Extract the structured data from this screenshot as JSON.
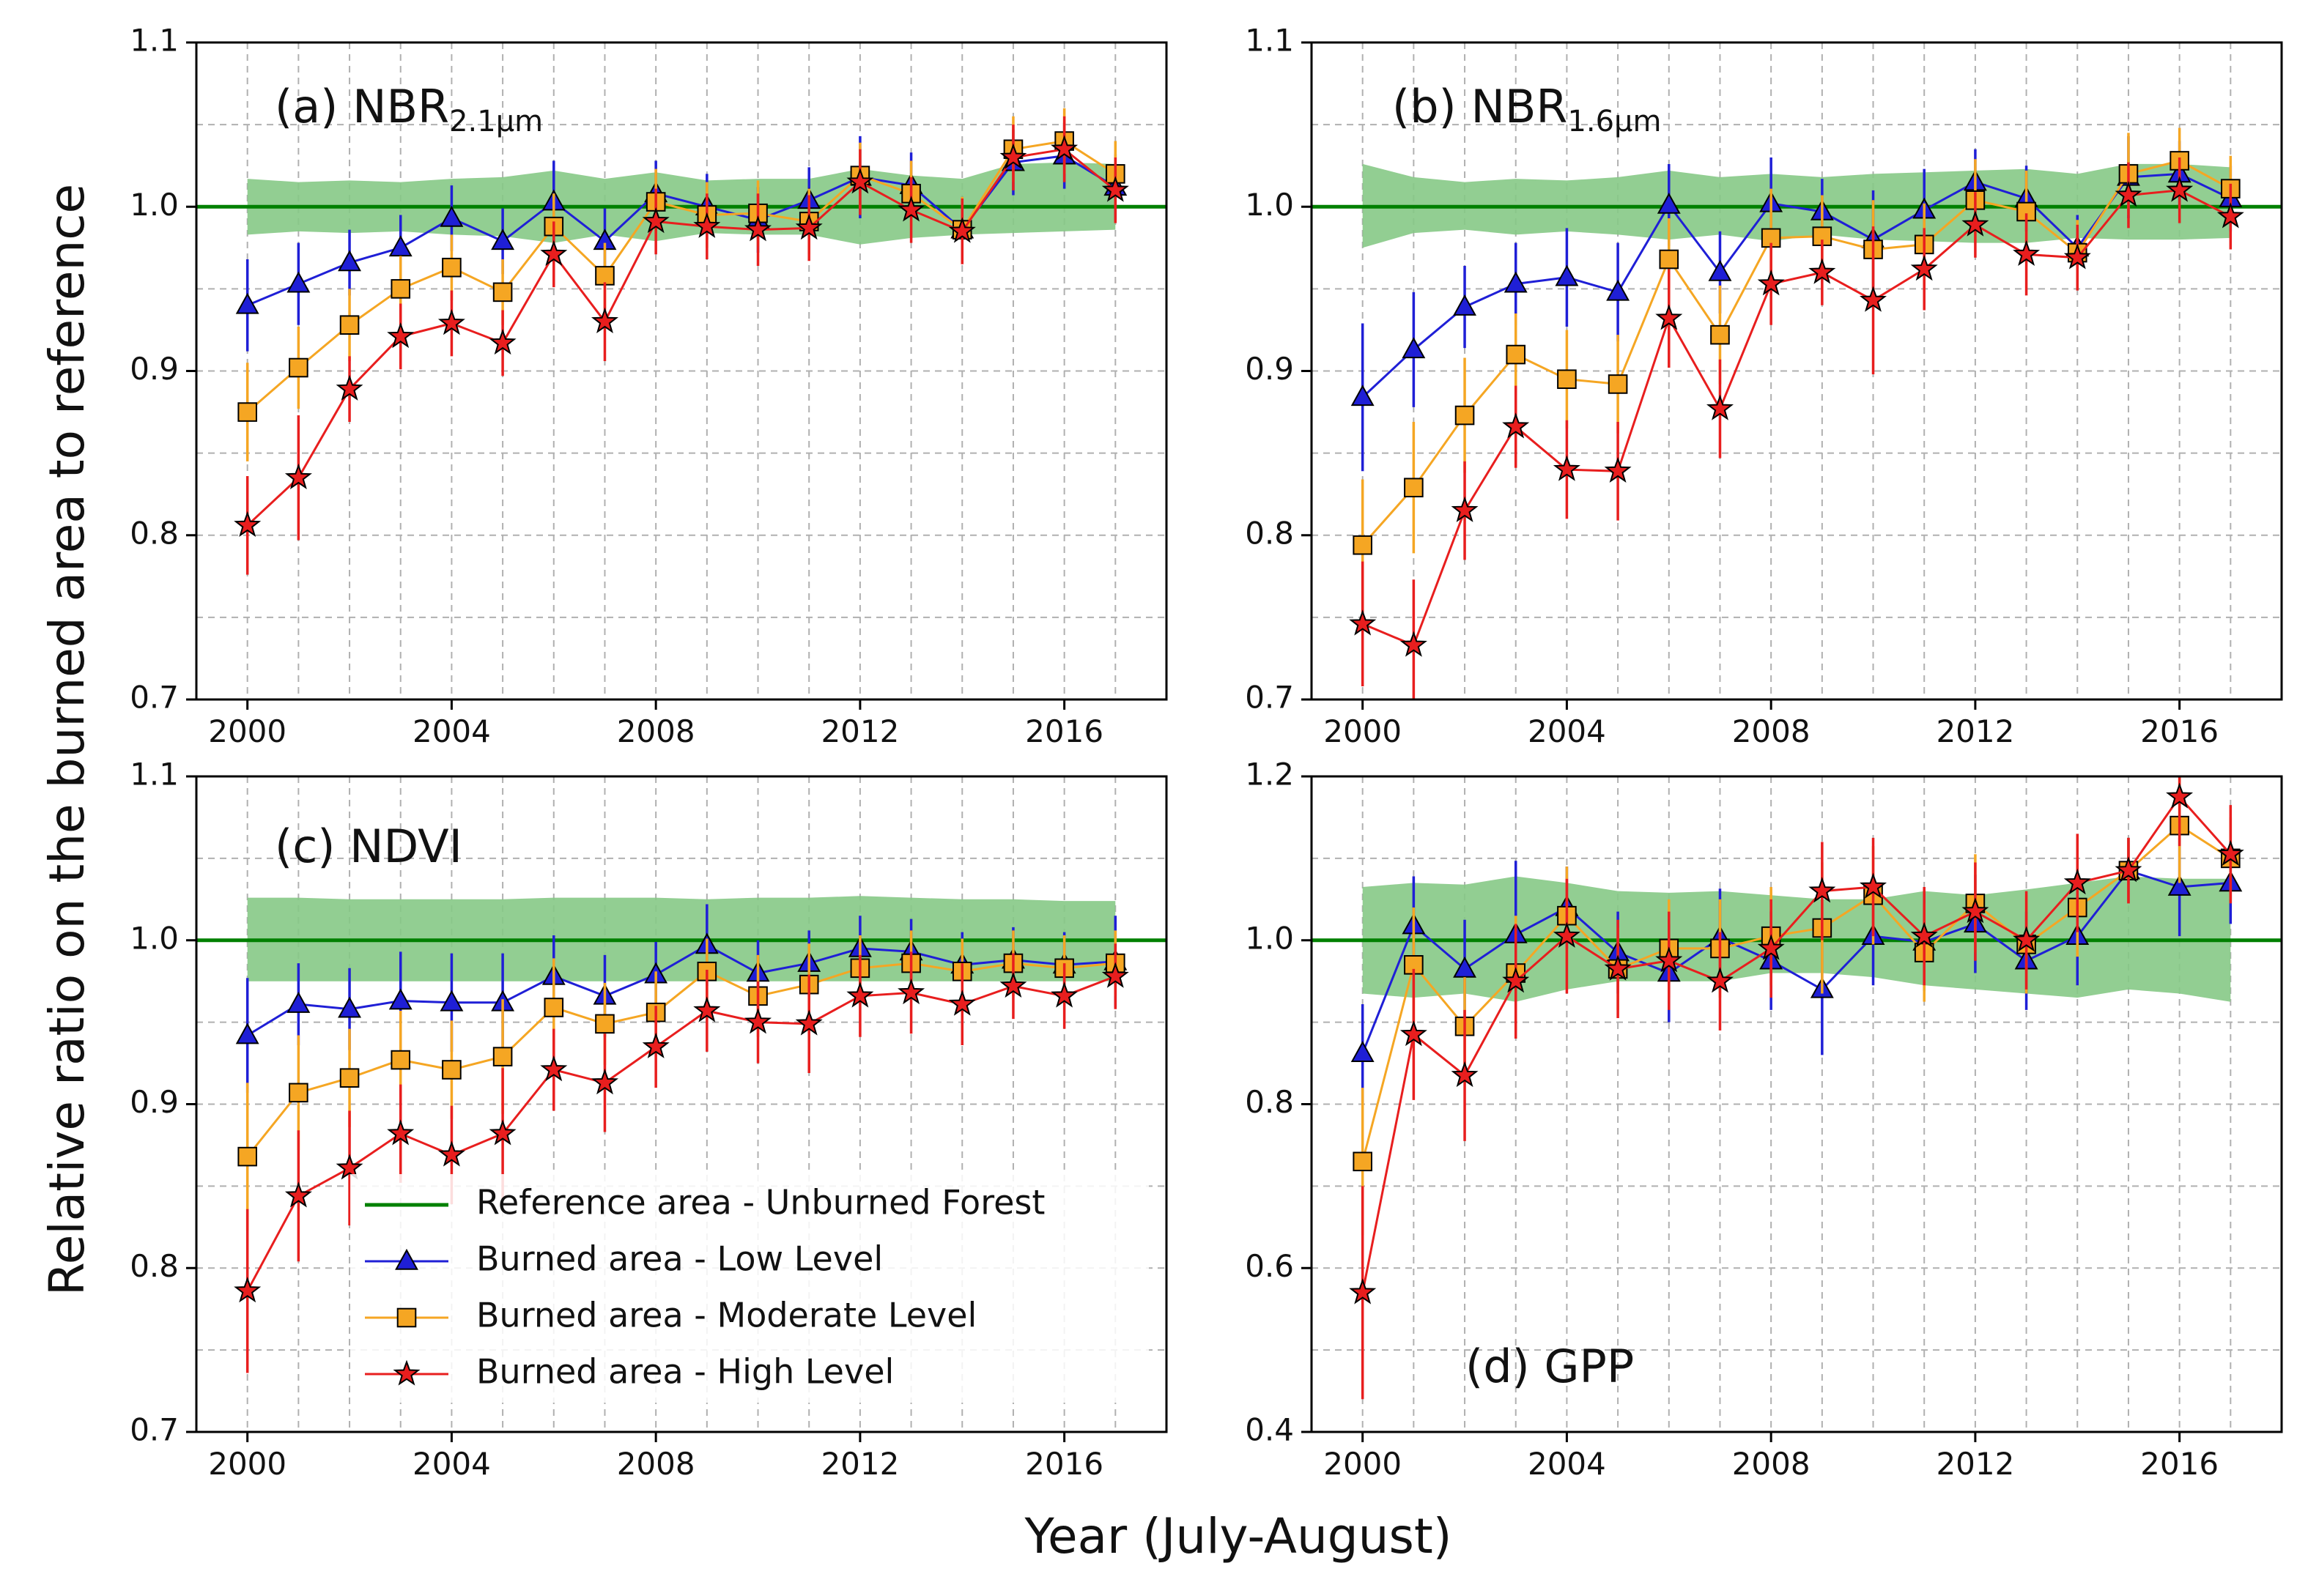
{
  "figure": {
    "ylabel": "Relative ratio on the burned area to reference",
    "xlabel": "Year (July-August)"
  },
  "legend": {
    "entries": [
      {
        "label": "Reference area - Unburned Forest",
        "color": "#008000",
        "marker": "line"
      },
      {
        "label": "Burned area - Low Level",
        "color": "#1f1fd6",
        "marker": "triangle"
      },
      {
        "label": "Burned area - Moderate Level",
        "color": "#f5a623",
        "marker": "square"
      },
      {
        "label": "Burned area - High Level",
        "color": "#e81e1e",
        "marker": "star"
      }
    ]
  },
  "colors": {
    "reference": "#008000",
    "band": "#86c986",
    "low": "#1f1fd6",
    "moderate": "#f5a623",
    "high": "#e81e1e",
    "grid": "#b0b0b0"
  },
  "chart_data": [
    {
      "type": "line",
      "title": "(a) NBR",
      "title_subscript": "2.1μm",
      "xlabel": "Year (July-August)",
      "ylabel": "Relative ratio on the burned area to reference",
      "xlim": [
        1999,
        2018
      ],
      "ylim": [
        0.7,
        1.1
      ],
      "xticks": [
        "2000",
        "2004",
        "2008",
        "2012",
        "2016"
      ],
      "yticks": [
        "0.7",
        "0.8",
        "0.9",
        "1.0",
        "1.1"
      ],
      "x": [
        2000,
        2001,
        2002,
        2003,
        2004,
        2005,
        2006,
        2007,
        2008,
        2009,
        2010,
        2011,
        2012,
        2013,
        2014,
        2015,
        2016,
        2017
      ],
      "reference": 1.0,
      "band_upper": [
        1.017,
        1.015,
        1.016,
        1.015,
        1.017,
        1.018,
        1.022,
        1.017,
        1.021,
        1.016,
        1.017,
        1.017,
        1.023,
        1.019,
        1.017,
        1.026,
        1.027,
        1.026
      ],
      "band_lower": [
        0.983,
        0.985,
        0.984,
        0.985,
        0.983,
        0.982,
        0.978,
        0.983,
        0.979,
        0.984,
        0.983,
        0.983,
        0.977,
        0.981,
        0.983,
        0.984,
        0.985,
        0.986
      ],
      "series": [
        {
          "name": "Burned area - Low Level",
          "marker": "triangle",
          "values": [
            0.94,
            0.953,
            0.966,
            0.975,
            0.993,
            0.979,
            1.003,
            0.979,
            1.008,
            1.0,
            0.992,
            1.004,
            1.018,
            1.013,
            0.986,
            1.027,
            1.031,
            1.012
          ],
          "errors": [
            0.028,
            0.025,
            0.02,
            0.02,
            0.02,
            0.02,
            0.025,
            0.02,
            0.02,
            0.02,
            0.02,
            0.02,
            0.025,
            0.02,
            0.02,
            0.02,
            0.02,
            0.02
          ]
        },
        {
          "name": "Burned area - Moderate Level",
          "marker": "square",
          "values": [
            0.875,
            0.902,
            0.928,
            0.95,
            0.963,
            0.948,
            0.988,
            0.958,
            1.003,
            0.995,
            0.996,
            0.991,
            1.019,
            1.008,
            0.986,
            1.035,
            1.04,
            1.02
          ],
          "errors": [
            0.03,
            0.025,
            0.022,
            0.02,
            0.02,
            0.02,
            0.02,
            0.02,
            0.02,
            0.02,
            0.02,
            0.02,
            0.02,
            0.02,
            0.02,
            0.02,
            0.02,
            0.02
          ]
        },
        {
          "name": "Burned area - High Level",
          "marker": "star",
          "values": [
            0.806,
            0.835,
            0.889,
            0.921,
            0.929,
            0.917,
            0.971,
            0.93,
            0.991,
            0.988,
            0.986,
            0.987,
            1.015,
            0.998,
            0.985,
            1.03,
            1.035,
            1.01
          ],
          "errors": [
            0.03,
            0.038,
            0.02,
            0.02,
            0.02,
            0.02,
            0.02,
            0.024,
            0.02,
            0.02,
            0.022,
            0.02,
            0.02,
            0.02,
            0.02,
            0.02,
            0.02,
            0.02
          ]
        }
      ]
    },
    {
      "type": "line",
      "title": "(b) NBR",
      "title_subscript": "1.6μm",
      "xlim": [
        1999,
        2018
      ],
      "ylim": [
        0.7,
        1.1
      ],
      "xticks": [
        "2000",
        "2004",
        "2008",
        "2012",
        "2016"
      ],
      "yticks": [
        "0.7",
        "0.8",
        "0.9",
        "1.0",
        "1.1"
      ],
      "x": [
        2000,
        2001,
        2002,
        2003,
        2004,
        2005,
        2006,
        2007,
        2008,
        2009,
        2010,
        2011,
        2012,
        2013,
        2014,
        2015,
        2016,
        2017
      ],
      "reference": 1.0,
      "band_upper": [
        1.026,
        1.018,
        1.015,
        1.017,
        1.016,
        1.018,
        1.022,
        1.018,
        1.02,
        1.018,
        1.02,
        1.021,
        1.022,
        1.023,
        1.02,
        1.026,
        1.026,
        1.024
      ],
      "band_lower": [
        0.975,
        0.984,
        0.986,
        0.983,
        0.985,
        0.983,
        0.98,
        0.983,
        0.979,
        0.983,
        0.98,
        0.979,
        0.978,
        0.978,
        0.981,
        0.98,
        0.98,
        0.981
      ],
      "series": [
        {
          "name": "Burned area - Low Level",
          "marker": "triangle",
          "values": [
            0.884,
            0.913,
            0.939,
            0.953,
            0.957,
            0.948,
            1.001,
            0.96,
            1.002,
            0.997,
            0.98,
            0.998,
            1.015,
            1.005,
            0.975,
            1.018,
            1.02,
            1.005
          ],
          "errors": [
            0.045,
            0.035,
            0.025,
            0.025,
            0.03,
            0.03,
            0.025,
            0.025,
            0.028,
            0.02,
            0.03,
            0.025,
            0.02,
            0.02,
            0.02,
            0.025,
            0.02,
            0.02
          ]
        },
        {
          "name": "Burned area - Moderate Level",
          "marker": "square",
          "values": [
            0.794,
            0.829,
            0.873,
            0.91,
            0.895,
            0.892,
            0.968,
            0.922,
            0.981,
            0.982,
            0.974,
            0.977,
            1.004,
            0.997,
            0.972,
            1.02,
            1.028,
            1.011
          ],
          "errors": [
            0.04,
            0.04,
            0.035,
            0.025,
            0.03,
            0.03,
            0.025,
            0.03,
            0.03,
            0.025,
            0.03,
            0.025,
            0.025,
            0.025,
            0.02,
            0.025,
            0.02,
            0.02
          ]
        },
        {
          "name": "Burned area - High Level",
          "marker": "star",
          "values": [
            0.746,
            0.733,
            0.815,
            0.866,
            0.84,
            0.839,
            0.932,
            0.877,
            0.953,
            0.96,
            0.943,
            0.962,
            0.989,
            0.971,
            0.969,
            1.007,
            1.01,
            0.994
          ],
          "errors": [
            0.038,
            0.04,
            0.03,
            0.025,
            0.03,
            0.03,
            0.03,
            0.03,
            0.025,
            0.02,
            0.045,
            0.025,
            0.02,
            0.025,
            0.02,
            0.02,
            0.02,
            0.02
          ]
        }
      ]
    },
    {
      "type": "line",
      "title": "(c) NDVI",
      "title_subscript": "",
      "xlim": [
        1999,
        2018
      ],
      "ylim": [
        0.7,
        1.1
      ],
      "xticks": [
        "2000",
        "2004",
        "2008",
        "2012",
        "2016"
      ],
      "yticks": [
        "0.7",
        "0.8",
        "0.9",
        "1.0",
        "1.1"
      ],
      "x": [
        2000,
        2001,
        2002,
        2003,
        2004,
        2005,
        2006,
        2007,
        2008,
        2009,
        2010,
        2011,
        2012,
        2013,
        2014,
        2015,
        2016,
        2017
      ],
      "reference": 1.0,
      "band_upper": [
        1.026,
        1.026,
        1.025,
        1.025,
        1.025,
        1.025,
        1.026,
        1.026,
        1.026,
        1.025,
        1.026,
        1.026,
        1.027,
        1.026,
        1.025,
        1.025,
        1.024,
        1.024
      ],
      "band_lower": [
        0.975,
        0.975,
        0.975,
        0.975,
        0.975,
        0.975,
        0.975,
        0.975,
        0.975,
        0.975,
        0.975,
        0.975,
        0.975,
        0.975,
        0.975,
        0.975,
        0.975,
        0.975
      ],
      "series": [
        {
          "name": "Burned area - Low Level",
          "marker": "triangle",
          "values": [
            0.942,
            0.961,
            0.958,
            0.963,
            0.962,
            0.962,
            0.978,
            0.966,
            0.979,
            0.997,
            0.98,
            0.986,
            0.995,
            0.993,
            0.985,
            0.988,
            0.985,
            0.987
          ],
          "errors": [
            0.035,
            0.025,
            0.025,
            0.03,
            0.03,
            0.03,
            0.025,
            0.025,
            0.02,
            0.025,
            0.02,
            0.02,
            0.02,
            0.02,
            0.02,
            0.02,
            0.02,
            0.028
          ]
        },
        {
          "name": "Burned area - Moderate Level",
          "marker": "square",
          "values": [
            0.868,
            0.907,
            0.916,
            0.927,
            0.921,
            0.929,
            0.959,
            0.949,
            0.956,
            0.981,
            0.966,
            0.973,
            0.983,
            0.986,
            0.981,
            0.986,
            0.983,
            0.986
          ],
          "errors": [
            0.045,
            0.035,
            0.03,
            0.03,
            0.03,
            0.035,
            0.03,
            0.025,
            0.025,
            0.02,
            0.025,
            0.025,
            0.02,
            0.02,
            0.02,
            0.02,
            0.02,
            0.02
          ]
        },
        {
          "name": "Burned area - High Level",
          "marker": "star",
          "values": [
            0.786,
            0.844,
            0.861,
            0.882,
            0.869,
            0.882,
            0.921,
            0.913,
            0.935,
            0.957,
            0.95,
            0.949,
            0.966,
            0.968,
            0.961,
            0.972,
            0.966,
            0.978
          ],
          "errors": [
            0.05,
            0.04,
            0.035,
            0.03,
            0.03,
            0.04,
            0.025,
            0.03,
            0.025,
            0.025,
            0.025,
            0.03,
            0.025,
            0.025,
            0.025,
            0.02,
            0.02,
            0.02
          ]
        }
      ]
    },
    {
      "type": "line",
      "title": "(d) GPP",
      "title_subscript": "",
      "xlim": [
        1999,
        2018
      ],
      "ylim": [
        0.4,
        1.2
      ],
      "xticks": [
        "2000",
        "2004",
        "2008",
        "2012",
        "2016"
      ],
      "yticks": [
        "0.4",
        "0.6",
        "0.8",
        "1.0",
        "1.2"
      ],
      "x": [
        2000,
        2001,
        2002,
        2003,
        2004,
        2005,
        2006,
        2007,
        2008,
        2009,
        2010,
        2011,
        2012,
        2013,
        2014,
        2015,
        2016,
        2017
      ],
      "reference": 1.0,
      "band_upper": [
        1.065,
        1.07,
        1.068,
        1.078,
        1.07,
        1.06,
        1.058,
        1.06,
        1.055,
        1.05,
        1.05,
        1.06,
        1.055,
        1.062,
        1.07,
        1.078,
        1.075,
        1.075
      ],
      "band_lower": [
        0.935,
        0.93,
        0.935,
        0.925,
        0.94,
        0.95,
        0.95,
        0.95,
        0.96,
        0.96,
        0.955,
        0.945,
        0.94,
        0.935,
        0.93,
        0.94,
        0.935,
        0.925
      ],
      "series": [
        {
          "name": "Burned area - Low Level",
          "marker": "triangle",
          "values": [
            0.862,
            1.018,
            0.965,
            1.007,
            1.04,
            0.985,
            0.96,
            1.003,
            0.975,
            0.94,
            1.005,
            0.998,
            1.02,
            0.975,
            1.005,
            1.085,
            1.065,
            1.07
          ],
          "errors": [
            0.06,
            0.06,
            0.06,
            0.09,
            0.05,
            0.05,
            0.06,
            0.06,
            0.06,
            0.08,
            0.06,
            0.06,
            0.06,
            0.06,
            0.06,
            0.04,
            0.06,
            0.05
          ]
        },
        {
          "name": "Burned area - Moderate Level",
          "marker": "square",
          "values": [
            0.73,
            0.97,
            0.895,
            0.96,
            1.03,
            0.965,
            0.99,
            0.99,
            1.005,
            1.015,
            1.055,
            0.985,
            1.045,
            0.995,
            1.04,
            1.085,
            1.14,
            1.1
          ],
          "errors": [
            0.09,
            0.07,
            0.06,
            0.07,
            0.06,
            0.05,
            0.06,
            0.06,
            0.06,
            0.08,
            0.06,
            0.06,
            0.06,
            0.06,
            0.06,
            0.04,
            0.07,
            0.05
          ]
        },
        {
          "name": "Burned area - High Level",
          "marker": "star",
          "values": [
            0.57,
            0.885,
            0.835,
            0.95,
            1.005,
            0.965,
            0.975,
            0.95,
            0.99,
            1.06,
            1.065,
            1.005,
            1.035,
            1.0,
            1.07,
            1.085,
            1.175,
            1.105
          ],
          "errors": [
            0.13,
            0.08,
            0.08,
            0.07,
            0.07,
            0.06,
            0.06,
            0.06,
            0.06,
            0.06,
            0.06,
            0.06,
            0.06,
            0.06,
            0.06,
            0.04,
            0.06,
            0.06
          ]
        }
      ]
    }
  ]
}
